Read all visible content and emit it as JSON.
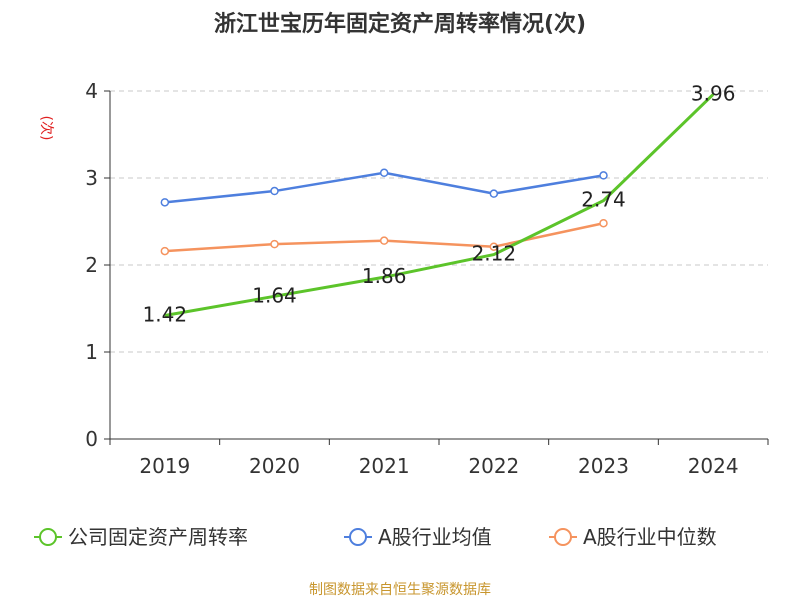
{
  "chart_data": {
    "type": "line",
    "title": "浙江世宝历年固定资产周转率情况(次)",
    "ylabel": "(次)",
    "xlabel": "",
    "categories": [
      "2019",
      "2020",
      "2021",
      "2022",
      "2023",
      "2024"
    ],
    "ylim": [
      0,
      4
    ],
    "yticks": [
      0,
      1,
      2,
      3,
      4
    ],
    "grid": true,
    "legend_position": "bottom",
    "series": [
      {
        "name": "公司固定资产周转率",
        "color": "#5cc42a",
        "values": [
          1.42,
          1.64,
          1.86,
          2.12,
          2.74,
          3.96
        ],
        "labels": [
          "1.42",
          "1.64",
          "1.86",
          "2.12",
          "2.74",
          "3.96"
        ]
      },
      {
        "name": "A股行业均值",
        "color": "#4e7fde",
        "values": [
          2.72,
          2.85,
          3.06,
          2.82,
          3.03,
          null
        ]
      },
      {
        "name": "A股行业中位数",
        "color": "#f5935e",
        "values": [
          2.16,
          2.24,
          2.28,
          2.21,
          2.48,
          null
        ]
      }
    ],
    "source": "制图数据来自恒生聚源数据库"
  }
}
